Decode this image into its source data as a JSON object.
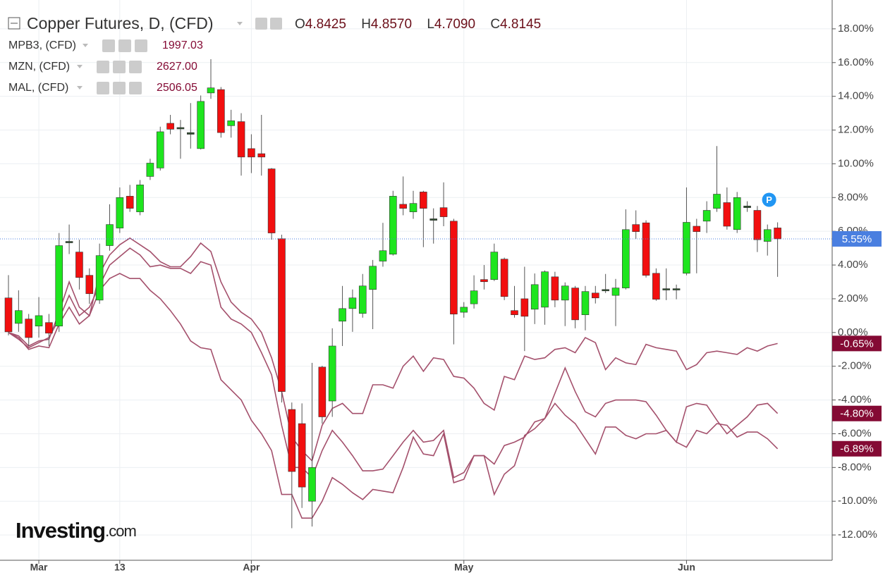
{
  "chart_data": {
    "type": "candlestick",
    "title": "Copper Futures, D, (CFD)",
    "ohlc": [
      {
        "label": "O",
        "value": "4.8425"
      },
      {
        "label": "H",
        "value": "4.8570"
      },
      {
        "label": "L",
        "value": "4.7090"
      },
      {
        "label": "C",
        "value": "4.8145"
      }
    ],
    "last_label": "5.55%",
    "watermark": [
      "Investing",
      ".com"
    ],
    "marker": "P",
    "categories": [
      null,
      null,
      null,
      "Mar",
      null,
      null,
      null,
      null,
      null,
      null,
      null,
      "13",
      null,
      null,
      null,
      null,
      null,
      null,
      null,
      null,
      null,
      null,
      null,
      null,
      "Apr",
      null,
      null,
      null,
      null,
      null,
      null,
      null,
      null,
      null,
      null,
      null,
      null,
      null,
      null,
      null,
      null,
      null,
      null,
      null,
      null,
      "May",
      null,
      null,
      null,
      null,
      null,
      null,
      null,
      null,
      null,
      null,
      null,
      null,
      null,
      null,
      null,
      null,
      null,
      null,
      null,
      null,
      null,
      "Jun",
      null,
      null,
      null,
      null,
      null,
      null,
      null,
      null,
      null
    ],
    "open": [
      2.05,
      0.54,
      0.8,
      0.38,
      0.59,
      0.38,
      5.4,
      4.77,
      3.39,
      1.92,
      5.15,
      6.19,
      8.08,
      7.15,
      9.25,
      9.75,
      12.4,
      12.15,
      11.85,
      10.9,
      14.2,
      14.4,
      12.26,
      12.5,
      10.9,
      10.6,
      9.7,
      5.56,
      -4.56,
      -5.4,
      -10.0,
      -2.05,
      -4.06,
      0.67,
      1.42,
      1.13,
      2.55,
      4.23,
      4.64,
      7.6,
      7.15,
      8.33,
      6.74,
      7.4,
      6.6,
      1.2,
      1.7,
      3.14,
      3.14,
      4.35,
      1.3,
      2.0,
      1.38,
      1.5,
      3.3,
      1.92,
      2.64,
      1.05,
      2.34,
      2.55,
      2.2,
      2.64,
      6.4,
      6.5,
      3.51,
      2.6,
      2.55,
      3.51,
      6.3,
      6.6,
      7.36,
      7.7,
      6.1,
      7.5,
      7.24,
      5.4,
      6.2
    ],
    "high": [
      3.4,
      2.5,
      1.1,
      2.1,
      1.1,
      5.9,
      6.4,
      5.5,
      3.8,
      5.27,
      7.6,
      8.6,
      8.75,
      9.04,
      10.3,
      12.2,
      12.9,
      12.6,
      13.6,
      14.05,
      16.2,
      14.55,
      13.2,
      13.0,
      11.75,
      12.9,
      9.75,
      5.8,
      -4.15,
      -4.2,
      -1.8,
      -1.97,
      0.25,
      2.76,
      2.55,
      3.47,
      4.3,
      6.5,
      8.4,
      9.25,
      8.4,
      8.4,
      7.36,
      8.9,
      6.74,
      1.8,
      3.39,
      4.0,
      5.27,
      4.44,
      2.76,
      3.9,
      3.5,
      3.68,
      3.6,
      2.97,
      2.76,
      2.76,
      2.76,
      3.47,
      3.18,
      7.3,
      7.24,
      6.65,
      3.8,
      3.8,
      2.84,
      8.6,
      6.74,
      7.78,
      11.05,
      8.6,
      8.33,
      7.78,
      7.5,
      6.4,
      6.53
    ],
    "low": [
      -0.17,
      0.04,
      -0.8,
      -0.3,
      -0.8,
      0.04,
      4.65,
      2.55,
      1.7,
      1.7,
      4.85,
      5.9,
      7.15,
      6.95,
      9.04,
      9.6,
      11.75,
      10.3,
      10.9,
      10.85,
      13.85,
      11.55,
      11.55,
      9.3,
      9.45,
      9.3,
      5.5,
      -4.15,
      -11.6,
      -10.4,
      -11.5,
      -5.4,
      -5.0,
      -0.8,
      0.04,
      0.88,
      0.2,
      3.9,
      4.56,
      6.95,
      6.74,
      5.06,
      5.27,
      6.3,
      -0.7,
      0.88,
      1.42,
      2.55,
      3.05,
      1.92,
      0.88,
      -1.1,
      0.5,
      0.46,
      1.5,
      0.38,
      0.25,
      0.13,
      1.72,
      2.34,
      0.38,
      2.55,
      5.56,
      3.26,
      1.88,
      1.92,
      1.97,
      3.39,
      3.51,
      5.9,
      7.15,
      6.1,
      5.9,
      7.15,
      4.77,
      4.56,
      3.3
    ],
    "close": [
      0.04,
      1.3,
      -0.3,
      1.0,
      -0.04,
      5.15,
      5.4,
      3.26,
      2.3,
      4.56,
      6.4,
      8.0,
      7.36,
      8.75,
      10.04,
      11.9,
      12.05,
      12.1,
      11.75,
      13.7,
      14.5,
      11.85,
      12.55,
      10.4,
      10.4,
      10.4,
      5.9,
      -3.5,
      -8.24,
      -9.16,
      -8.0,
      -5.0,
      -0.8,
      1.42,
      2.05,
      2.76,
      3.93,
      4.85,
      8.08,
      7.36,
      7.65,
      7.36,
      6.65,
      6.86,
      1.09,
      1.5,
      2.47,
      3.01,
      4.77,
      2.13,
      1.05,
      0.96,
      2.84,
      3.6,
      1.92,
      2.76,
      0.75,
      2.43,
      2.05,
      2.47,
      2.64,
      6.1,
      5.98,
      3.39,
      1.97,
      2.55,
      2.6,
      6.53,
      5.98,
      7.24,
      8.2,
      6.3,
      8.0,
      7.4,
      5.5,
      6.1,
      5.55
    ],
    "up_color": "#1ee51e",
    "down_color": "#f20f0f",
    "doji_color": "#2f4f2f",
    "last_color": "#4a7fe0",
    "series": [
      {
        "name": "MPB3, (CFD)",
        "quote": "1997.03",
        "color": "#a4506c",
        "last_label": "-0.65%",
        "values": [
          0,
          -0.2,
          -0.8,
          -0.5,
          -0.4,
          1.2,
          3.0,
          1.5,
          1.0,
          3.5,
          4.6,
          5.2,
          5.6,
          5.2,
          4.8,
          4.2,
          3.9,
          3.9,
          4.5,
          5.3,
          4.8,
          3.0,
          1.8,
          1.2,
          0.8,
          0.0,
          -1.5,
          -3.5,
          -6.2,
          -7.0,
          -7.6,
          -5.5,
          -4.5,
          -4.2,
          -4.8,
          -4.8,
          -3.1,
          -3.1,
          -3.3,
          -2.0,
          -1.4,
          -2.3,
          -1.5,
          -1.6,
          -2.6,
          -2.7,
          -3.3,
          -4.2,
          -4.6,
          -2.6,
          -2.8,
          -1.4,
          -1.6,
          -1.5,
          -1.0,
          -0.9,
          -1.2,
          -0.3,
          -0.6,
          -2.2,
          -1.5,
          -1.8,
          -1.9,
          -0.7,
          -0.9,
          -1.0,
          -1.1,
          -2.2,
          -1.9,
          -1.2,
          -1.1,
          -1.2,
          -1.3,
          -0.9,
          -1.1,
          -0.8,
          -0.65
        ]
      },
      {
        "name": "MZN, (CFD)",
        "quote": "2627.00",
        "color": "#a4506c",
        "last_label": "-4.80%",
        "values": [
          0,
          -0.4,
          -0.9,
          -0.6,
          -0.3,
          0.8,
          2.2,
          1.0,
          1.5,
          2.8,
          4.0,
          4.5,
          5.0,
          4.6,
          3.9,
          4.0,
          3.8,
          3.8,
          3.5,
          4.2,
          4.0,
          1.5,
          0.8,
          0.5,
          0.0,
          -1.2,
          -2.5,
          -5.5,
          -8.0,
          -8.0,
          -8.6,
          -7.0,
          -5.8,
          -6.5,
          -7.3,
          -8.2,
          -8.2,
          -8.1,
          -7.3,
          -6.5,
          -5.8,
          -6.5,
          -6.4,
          -5.8,
          -8.6,
          -8.3,
          -7.3,
          -7.3,
          -7.8,
          -6.7,
          -6.5,
          -6.2,
          -5.3,
          -5.1,
          -3.6,
          -2.1,
          -3.5,
          -4.7,
          -5.0,
          -4.2,
          -4.0,
          -4.0,
          -4.0,
          -4.1,
          -4.9,
          -5.8,
          -6.5,
          -4.4,
          -4.2,
          -4.3,
          -5.2,
          -6.0,
          -5.5,
          -5.0,
          -4.3,
          -4.2,
          -4.8
        ]
      },
      {
        "name": "MAL, (CFD)",
        "quote": "2506.05",
        "color": "#a4506c",
        "last_label": "-6.89%",
        "values": [
          0,
          -0.3,
          -1.0,
          -0.8,
          -0.9,
          0.5,
          1.5,
          0.5,
          1.0,
          2.5,
          3.2,
          3.5,
          3.2,
          3.2,
          2.5,
          2.0,
          1.3,
          0.5,
          -0.5,
          -0.9,
          -1.0,
          -2.8,
          -3.4,
          -4.0,
          -5.2,
          -6.0,
          -7.0,
          -9.6,
          -9.6,
          -11.0,
          -11.0,
          -10.0,
          -8.6,
          -9.0,
          -9.5,
          -9.9,
          -9.3,
          -9.4,
          -9.5,
          -8.0,
          -6.2,
          -7.2,
          -7.3,
          -6.0,
          -8.9,
          -8.7,
          -7.3,
          -7.3,
          -9.6,
          -8.4,
          -7.9,
          -6.1,
          -5.7,
          -5.1,
          -4.2,
          -4.9,
          -5.4,
          -6.3,
          -7.2,
          -5.6,
          -5.6,
          -6.1,
          -6.3,
          -6.0,
          -6.0,
          -5.8,
          -6.5,
          -6.8,
          -5.8,
          -6.0,
          -5.4,
          -5.5,
          -6.2,
          -5.9,
          -5.9,
          -6.3,
          -6.89
        ]
      }
    ],
    "label_color": "#840a34",
    "ylim": [
      -13.5,
      19.5
    ],
    "yticks": [
      {
        "value": -12,
        "label": "-12.00%"
      },
      {
        "value": -10,
        "label": "-10.00%"
      },
      {
        "value": -8,
        "label": "-8.00%"
      },
      {
        "value": -6,
        "label": "-6.00%"
      },
      {
        "value": -4,
        "label": "-4.00%"
      },
      {
        "value": -2,
        "label": "-2.00%"
      },
      {
        "value": 0,
        "label": "0.00%"
      },
      {
        "value": 2,
        "label": "2.00%"
      },
      {
        "value": 4,
        "label": "4.00%"
      },
      {
        "value": 6,
        "label": "6.00%"
      },
      {
        "value": 8,
        "label": "8.00%"
      },
      {
        "value": 10,
        "label": "10.00%"
      },
      {
        "value": 12,
        "label": "12.00%"
      },
      {
        "value": 14,
        "label": "14.00%"
      },
      {
        "value": 16,
        "label": "16.00%"
      },
      {
        "value": 18,
        "label": "18.00%"
      }
    ],
    "grid": true
  }
}
